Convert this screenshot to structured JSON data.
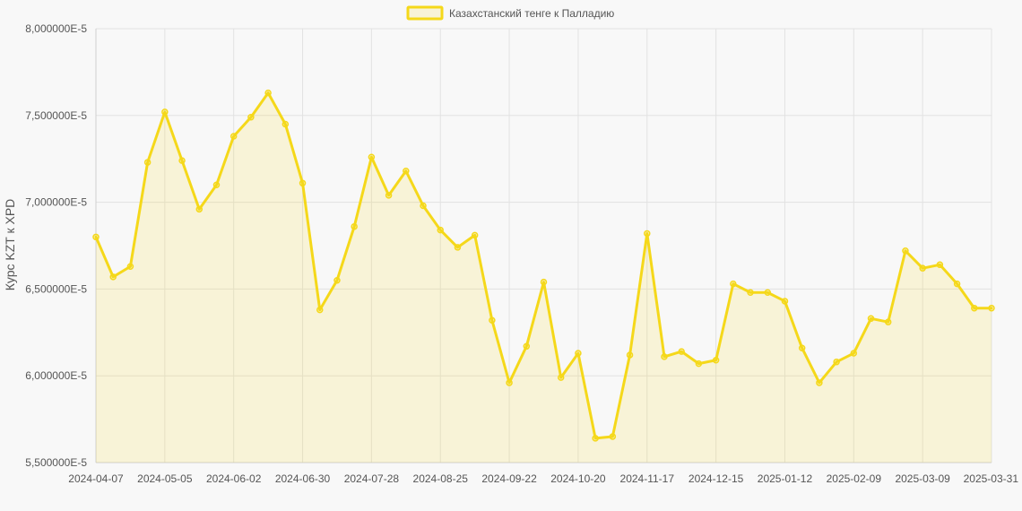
{
  "chart_data": {
    "type": "area",
    "series": [
      {
        "name": "Казахстанский тенге к Палладию",
        "color": "#f5d81a",
        "fill": "rgba(245,216,26,0.15)",
        "values": [
          6.8,
          6.57,
          6.63,
          7.23,
          7.52,
          7.24,
          6.96,
          7.1,
          7.38,
          7.49,
          7.63,
          7.45,
          7.11,
          6.38,
          6.55,
          6.86,
          7.26,
          7.04,
          7.18,
          6.98,
          6.84,
          6.74,
          6.81,
          6.32,
          5.96,
          6.17,
          6.54,
          5.99,
          6.13,
          5.64,
          5.65,
          6.12,
          6.82,
          6.11,
          6.14,
          6.07,
          6.09,
          6.53,
          6.48,
          6.48,
          6.43,
          6.16,
          5.96,
          6.08,
          6.13,
          6.33,
          6.31,
          6.72,
          6.62,
          6.64,
          6.53,
          6.39,
          6.39
        ]
      }
    ],
    "value_multiplier": "E-5",
    "x_ticks": [
      "2024-04-07",
      "2024-05-05",
      "2024-06-02",
      "2024-06-30",
      "2024-07-28",
      "2024-08-25",
      "2024-09-22",
      "2024-10-20",
      "2024-11-17",
      "2024-12-15",
      "2025-01-12",
      "2025-02-09",
      "2025-03-09",
      "2025-03-31"
    ],
    "y_ticks": [
      "8,000000E-5",
      "7,500000E-5",
      "7,000000E-5",
      "6,500000E-5",
      "6,000000E-5",
      "5,500000E-5"
    ],
    "ylim": [
      5.5,
      8.0
    ],
    "ylabel": "Курс KZT к XPD",
    "xlabel": "",
    "grid": true,
    "legend_position": "top-center"
  }
}
